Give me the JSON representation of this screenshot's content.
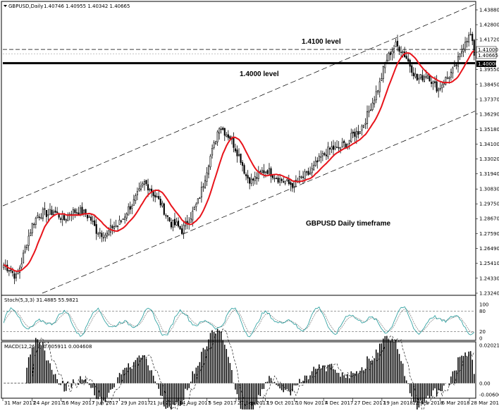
{
  "header": {
    "symbol_label": "GBPUSD,Daily",
    "ohlc": "1.40746 1.40955 1.40342 1.40665"
  },
  "annotations": {
    "level_1_4100": "1.4100 level",
    "level_1_4000": "1.4000 level",
    "timeframe": "GBPUSD Daily timeframe"
  },
  "price_tags": {
    "resistance": "1.41000",
    "current": "1.40665",
    "support": "1.40000"
  },
  "stoch_header": "Stoch(5,3,3) 31.4885 55.9821",
  "macd_header": "MACD(12,26,9) 0.005911 0.004608",
  "colors": {
    "candle": "#000000",
    "ma": "#e8141b",
    "stoch_main": "#1f9a9a",
    "stoch_signal": "#7a7a7a",
    "macd_hist": "#000000",
    "macd_signal": "#000000",
    "channel": "#000000",
    "level_line": "#000000"
  },
  "chart_data": [
    {
      "type": "candlestick",
      "title": "",
      "x_tick_labels": [
        "31 Mar 2017",
        "24 Apr 2017",
        "16 May 2017",
        "7 Jun 2017",
        "29 Jun 2017",
        "21 Jul 2017",
        "14 Aug 2017",
        "5 Sep 2017",
        "27 Sep 2017",
        "19 Oct 2017",
        "10 Nov 2017",
        "4 Dec 2017",
        "27 Dec 2017",
        "19 Jan 2018",
        "12 Feb 2018",
        "6 Mar 2018",
        "28 Mar 2018"
      ],
      "x_range": [
        "31 Mar 2017",
        "28 Mar 2018"
      ],
      "y_tick_labels": [
        "1.43880",
        "1.42800",
        "1.41720",
        "1.41000",
        "1.40665",
        "1.40000",
        "1.39550",
        "1.38450",
        "1.37370",
        "1.36290",
        "1.35180",
        "1.34100",
        "1.33020",
        "1.31940",
        "1.30830",
        "1.29750",
        "1.28670",
        "1.27590",
        "1.26490",
        "1.25410",
        "1.24330",
        "1.23240"
      ],
      "ylim": [
        1.2324,
        1.4388
      ],
      "horizontal_levels": [
        1.41,
        1.4
      ],
      "close_path": [
        [
          0,
          1.253
        ],
        [
          4,
          1.249
        ],
        [
          7,
          1.244
        ],
        [
          10,
          1.255
        ],
        [
          13,
          1.27
        ],
        [
          16,
          1.282
        ],
        [
          19,
          1.289
        ],
        [
          22,
          1.291
        ],
        [
          25,
          1.29
        ],
        [
          28,
          1.292
        ],
        [
          31,
          1.289
        ],
        [
          34,
          1.286
        ],
        [
          37,
          1.291
        ],
        [
          40,
          1.292
        ],
        [
          43,
          1.292
        ],
        [
          46,
          1.29
        ],
        [
          49,
          1.286
        ],
        [
          52,
          1.278
        ],
        [
          55,
          1.276
        ],
        [
          58,
          1.275
        ],
        [
          61,
          1.281
        ],
        [
          64,
          1.282
        ],
        [
          67,
          1.287
        ],
        [
          70,
          1.294
        ],
        [
          73,
          1.299
        ],
        [
          76,
          1.306
        ],
        [
          79,
          1.313
        ],
        [
          82,
          1.309
        ],
        [
          85,
          1.303
        ],
        [
          88,
          1.298
        ],
        [
          91,
          1.29
        ],
        [
          94,
          1.283
        ],
        [
          97,
          1.282
        ],
        [
          100,
          1.278
        ],
        [
          103,
          1.284
        ],
        [
          106,
          1.291
        ],
        [
          109,
          1.299
        ],
        [
          112,
          1.312
        ],
        [
          115,
          1.328
        ],
        [
          118,
          1.34
        ],
        [
          121,
          1.355
        ],
        [
          124,
          1.35
        ],
        [
          127,
          1.346
        ],
        [
          130,
          1.338
        ],
        [
          133,
          1.33
        ],
        [
          136,
          1.318
        ],
        [
          139,
          1.314
        ],
        [
          142,
          1.317
        ],
        [
          145,
          1.321
        ],
        [
          148,
          1.322
        ],
        [
          151,
          1.319
        ],
        [
          154,
          1.316
        ],
        [
          157,
          1.314
        ],
        [
          160,
          1.312
        ],
        [
          163,
          1.312
        ],
        [
          166,
          1.315
        ],
        [
          169,
          1.318
        ],
        [
          172,
          1.32
        ],
        [
          175,
          1.326
        ],
        [
          178,
          1.331
        ],
        [
          181,
          1.335
        ],
        [
          184,
          1.338
        ],
        [
          187,
          1.337
        ],
        [
          190,
          1.34
        ],
        [
          193,
          1.342
        ],
        [
          196,
          1.348
        ],
        [
          199,
          1.35
        ],
        [
          202,
          1.356
        ],
        [
          205,
          1.365
        ],
        [
          208,
          1.375
        ],
        [
          211,
          1.385
        ],
        [
          214,
          1.4
        ],
        [
          217,
          1.408
        ],
        [
          220,
          1.413
        ],
        [
          223,
          1.41
        ],
        [
          226,
          1.404
        ],
        [
          229,
          1.396
        ],
        [
          232,
          1.388
        ],
        [
          235,
          1.39
        ],
        [
          238,
          1.392
        ],
        [
          241,
          1.385
        ],
        [
          244,
          1.381
        ],
        [
          247,
          1.387
        ],
        [
          250,
          1.391
        ],
        [
          253,
          1.396
        ],
        [
          256,
          1.405
        ],
        [
          259,
          1.417
        ],
        [
          262,
          1.42
        ],
        [
          264,
          1.407
        ]
      ],
      "series": [
        {
          "name": "",
          "type": "moving_average"
        }
      ]
    },
    {
      "type": "line",
      "title": "Stoch(5,3,3) 31.4885 55.9821",
      "y_tick_labels": [
        "100",
        "80",
        "20",
        "0"
      ],
      "ylim": [
        0,
        100
      ],
      "levels": [
        80,
        20
      ],
      "series": [
        {
          "name": "",
          "last": 31.4885
        },
        {
          "name": "",
          "last": 55.9821
        }
      ]
    },
    {
      "type": "bar",
      "title": "MACD(12,26,9) 0.005911 0.004608",
      "y_tick_labels": [
        "0.020216",
        "0.00",
        "-0.006064"
      ],
      "ylim": [
        -0.006064,
        0.020216
      ],
      "series": [
        {
          "name": "",
          "last": 0.005911
        },
        {
          "name": "",
          "last": 0.004608
        }
      ]
    }
  ]
}
